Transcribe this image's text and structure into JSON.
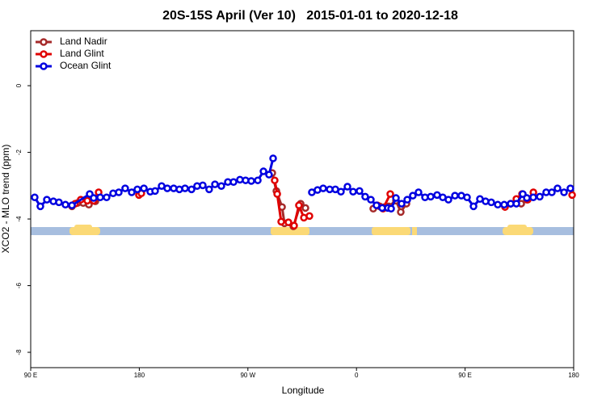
{
  "chart_data": {
    "type": "line",
    "title": "20S-15S April (Ver 10)   2015-01-01 to 2020-12-18",
    "xlabel": "Longitude",
    "ylabel": "XCO2 - MLO trend (ppm)",
    "xlim": [
      90,
      540
    ],
    "xticks": [
      {
        "value": 90,
        "label": "90 E"
      },
      180,
      {
        "value": 270,
        "label": "90 W"
      },
      {
        "value": 360,
        "label": "0"
      },
      {
        "value": 450,
        "label": "90 E"
      },
      {
        "value": 540,
        "label": "180"
      }
    ],
    "ylim": [
      -8.46,
      1.65
    ],
    "yticks": [
      0,
      -2,
      -4,
      -6,
      -8
    ],
    "legend": "top-left",
    "series": [
      {
        "name": "Land Nadir",
        "color": "#a52a2a",
        "x": [
          124.2,
          128.8,
          133.5,
          138.2,
          143.6,
          200,
          290.2,
          293.6,
          298.3,
          300.3,
          307.7,
          313.7,
          317.7,
          400,
          373.9,
          379.3,
          383.3,
          386.7,
          392.7,
          396.7,
          401.4,
          450,
          483.1,
          487.8,
          496.5,
          501.2
        ],
        "values": [
          -3.62,
          -3.52,
          -3.52,
          -3.57,
          -3.47,
          null,
          -2.62,
          -3.16,
          -3.64,
          -4.13,
          -4.22,
          -3.54,
          -3.67,
          null,
          -3.69,
          -3.62,
          -3.64,
          -3.62,
          -3.45,
          -3.79,
          -3.54,
          null,
          -3.62,
          -3.54,
          -3.54,
          -3.42
        ]
      },
      {
        "name": "Land Glint",
        "color": "#e00000",
        "x": [
          126.8,
          131.5,
          136.9,
          142.2,
          146.3,
          160,
          179.7,
          181.7,
          250,
          292.2,
          294.3,
          297.6,
          303.6,
          308.3,
          312.3,
          316.4,
          321,
          350,
          377.3,
          382,
          388,
          450,
          483.1,
          487.8,
          492.5,
          497.2,
          501.9,
          506.6,
          520,
          538.7
        ],
        "values": [
          -3.54,
          -3.42,
          -3.45,
          -3.45,
          -3.2,
          null,
          -3.28,
          -3.23,
          null,
          -2.84,
          -3.25,
          -4.08,
          -4.1,
          -4.2,
          -3.59,
          -3.96,
          -3.91,
          null,
          -3.59,
          -3.69,
          -3.25,
          null,
          -3.64,
          -3.54,
          -3.4,
          -3.25,
          -3.42,
          -3.2,
          null,
          -3.28
        ]
      },
      {
        "name": "Ocean Glint",
        "color": "#0000e0",
        "x": [
          93.3,
          98,
          103.4,
          108.8,
          113.4,
          118.8,
          124.2,
          138.9,
          142.2,
          147.6,
          152.9,
          158.3,
          163,
          168.3,
          173.7,
          178.4,
          183.8,
          189.1,
          193.1,
          198.5,
          203.2,
          208.5,
          213.2,
          217.9,
          223.3,
          227.9,
          232.6,
          237.9,
          242.7,
          248,
          253.4,
          258.1,
          263.4,
          268.1,
          272.8,
          278.2,
          282.9,
          287.5,
          290.9,
          300,
          323,
          327.7,
          332.4,
          337.8,
          342.5,
          347.1,
          352.5,
          357.2,
          362.5,
          367.2,
          371.9,
          376.6,
          381.3,
          386,
          388.7,
          392.7,
          397.4,
          402.1,
          406.7,
          411.4,
          416.8,
          421.5,
          426.8,
          431.5,
          436.2,
          441.6,
          446.9,
          451.6,
          457,
          462.3,
          467,
          471.7,
          477.1,
          482.4,
          487.8,
          492.5,
          497.8,
          501.2,
          506.5,
          511.9,
          517.2,
          521.9,
          526.6,
          532,
          537.3
        ],
        "values": [
          -3.35,
          -3.62,
          -3.42,
          -3.47,
          -3.5,
          -3.57,
          -3.59,
          -3.25,
          -3.37,
          -3.35,
          -3.35,
          -3.23,
          -3.2,
          -3.08,
          -3.2,
          -3.11,
          -3.08,
          -3.18,
          -3.16,
          -3.01,
          -3.08,
          -3.08,
          -3.11,
          -3.08,
          -3.11,
          -3.01,
          -2.99,
          -3.11,
          -2.96,
          -3.01,
          -2.89,
          -2.89,
          -2.82,
          -2.84,
          -2.86,
          -2.84,
          -2.57,
          -2.67,
          -2.18,
          null,
          -3.2,
          -3.13,
          -3.08,
          -3.11,
          -3.11,
          -3.18,
          -3.03,
          -3.18,
          -3.16,
          -3.33,
          -3.42,
          -3.59,
          -3.67,
          -3.67,
          -3.69,
          -3.37,
          -3.54,
          -3.42,
          -3.3,
          -3.2,
          -3.35,
          -3.33,
          -3.28,
          -3.35,
          -3.42,
          -3.3,
          -3.3,
          -3.35,
          -3.62,
          -3.4,
          -3.47,
          -3.5,
          -3.57,
          -3.57,
          -3.54,
          -3.54,
          -3.25,
          -3.37,
          -3.35,
          -3.33,
          -3.2,
          -3.2,
          -3.08,
          -3.2,
          -3.08
        ]
      }
    ]
  }
}
